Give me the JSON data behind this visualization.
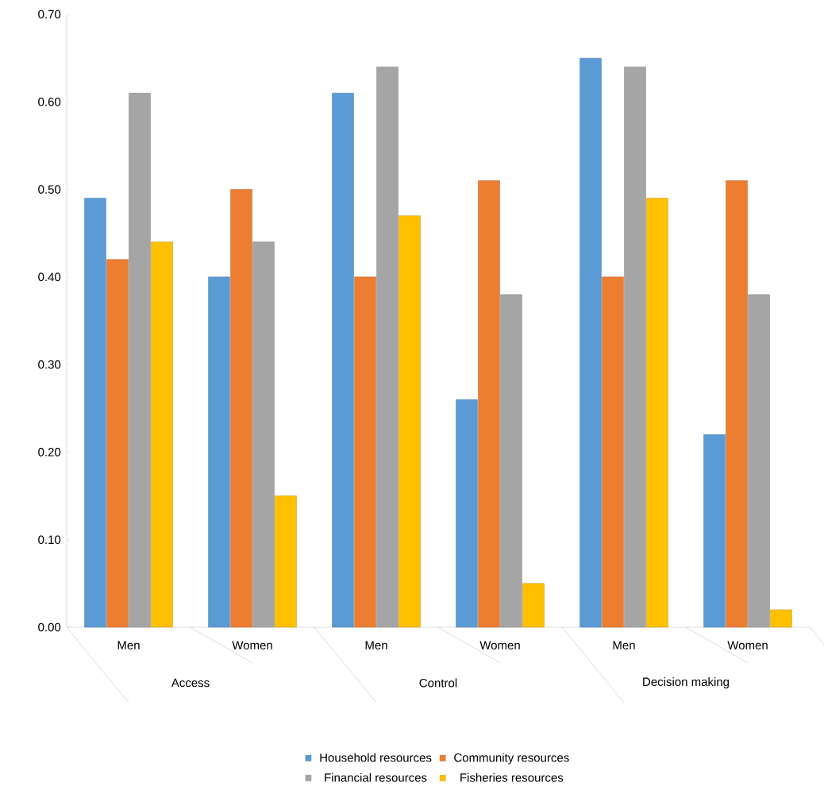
{
  "chart_data": {
    "type": "bar",
    "categories": [
      "Men",
      "Women",
      "Men",
      "Women",
      "Men",
      "Women"
    ],
    "annotations": [
      "Access",
      "Control",
      "Decision making"
    ],
    "series": [
      {
        "name": "Household resources",
        "color": "#5b9bd5",
        "values": [
          0.49,
          0.4,
          0.61,
          0.26,
          0.65,
          0.22
        ]
      },
      {
        "name": "Community resources",
        "color": "#ed7d31",
        "values": [
          0.42,
          0.5,
          0.4,
          0.51,
          0.4,
          0.51
        ]
      },
      {
        "name": "Financial resources",
        "color": "#a5a5a5",
        "values": [
          0.61,
          0.44,
          0.64,
          0.38,
          0.64,
          0.38
        ]
      },
      {
        "name": "Fisheries resources",
        "color": "#ffc000",
        "values": [
          0.44,
          0.15,
          0.47,
          0.05,
          0.49,
          0.02
        ]
      }
    ],
    "ylim": [
      0,
      0.7
    ],
    "yticks": [
      {
        "value": 0,
        "label": "0.00"
      },
      {
        "value": 0.1,
        "label": "0.10"
      },
      {
        "value": 0.2,
        "label": "0.20"
      },
      {
        "value": 0.3,
        "label": "0.30"
      },
      {
        "value": 0.4,
        "label": "0.40"
      },
      {
        "value": 0.5,
        "label": "0.50"
      },
      {
        "value": 0.6,
        "label": "0.60"
      },
      {
        "value": 0.7,
        "label": "0.70"
      }
    ],
    "legend": "bottom"
  }
}
